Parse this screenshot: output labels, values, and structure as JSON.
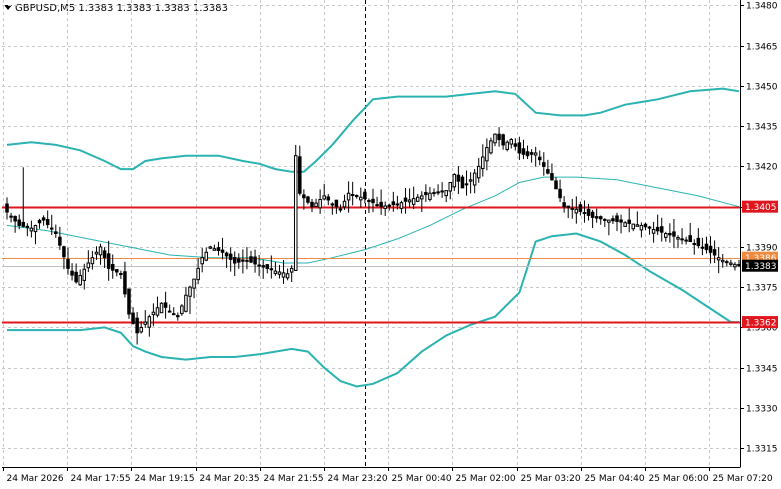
{
  "chart_data": {
    "type": "candlestick",
    "title": "GBPUSD,M5",
    "ohlc_header": [
      "1.3383",
      "1.3383",
      "1.3383",
      "1.3383"
    ],
    "ylim": [
      1.3308,
      1.3482
    ],
    "y_ticks": [
      "1.3480",
      "1.3465",
      "1.3450",
      "1.3435",
      "1.3420",
      "1.3405",
      "1.3390",
      "1.3375",
      "1.3360",
      "1.3345",
      "1.3330",
      "1.3315"
    ],
    "x_ticks": [
      "24 Mar 2026",
      "24 Mar 17:55",
      "24 Mar 19:15",
      "24 Mar 20:35",
      "24 Mar 21:55",
      "24 Mar 23:20",
      "25 Mar 00:40",
      "25 Mar 02:00",
      "25 Mar 03:20",
      "25 Mar 04:40",
      "25 Mar 06:00",
      "25 Mar 07:20"
    ],
    "grid": true,
    "levels": [
      {
        "label": "1.3405",
        "value": 1.3405,
        "color": "#e0161f",
        "kind": "resistance"
      },
      {
        "label": "1.3362",
        "value": 1.3362,
        "color": "#e0161f",
        "kind": "support"
      }
    ],
    "price_line": {
      "label": "1.3386",
      "value": 1.3386,
      "color": "#f08a3e"
    },
    "current_price": {
      "label": "1.3383",
      "value": 1.3383
    },
    "vertical_separator_index": 88,
    "bollinger": {
      "color": "#2ab3b0",
      "upper": [
        [
          0,
          1.3428
        ],
        [
          6,
          1.3429
        ],
        [
          12,
          1.3428
        ],
        [
          18,
          1.3426
        ],
        [
          24,
          1.3422
        ],
        [
          28,
          1.3419
        ],
        [
          31,
          1.3419
        ],
        [
          34,
          1.3422
        ],
        [
          38,
          1.3423
        ],
        [
          44,
          1.3424
        ],
        [
          52,
          1.3424
        ],
        [
          58,
          1.3422
        ],
        [
          62,
          1.3421
        ],
        [
          66,
          1.3419
        ],
        [
          70,
          1.3418
        ],
        [
          73,
          1.3418
        ],
        [
          76,
          1.3422
        ],
        [
          80,
          1.3428
        ],
        [
          85,
          1.3437
        ],
        [
          90,
          1.3445
        ],
        [
          96,
          1.3446
        ],
        [
          102,
          1.3446
        ],
        [
          108,
          1.3446
        ],
        [
          114,
          1.3447
        ],
        [
          120,
          1.3448
        ],
        [
          125,
          1.3447
        ],
        [
          130,
          1.344
        ],
        [
          136,
          1.3439
        ],
        [
          142,
          1.3439
        ],
        [
          146,
          1.344
        ],
        [
          152,
          1.3443
        ],
        [
          160,
          1.3445
        ],
        [
          168,
          1.3448
        ],
        [
          176,
          1.3449
        ],
        [
          180,
          1.3448
        ]
      ],
      "middle": [
        [
          0,
          1.3398
        ],
        [
          10,
          1.3396
        ],
        [
          20,
          1.3393
        ],
        [
          30,
          1.339
        ],
        [
          40,
          1.3387
        ],
        [
          50,
          1.3386
        ],
        [
          60,
          1.3386
        ],
        [
          68,
          1.3384
        ],
        [
          74,
          1.3384
        ],
        [
          80,
          1.3386
        ],
        [
          88,
          1.3389
        ],
        [
          96,
          1.3393
        ],
        [
          104,
          1.3398
        ],
        [
          112,
          1.3404
        ],
        [
          120,
          1.3409
        ],
        [
          126,
          1.3414
        ],
        [
          132,
          1.3416
        ],
        [
          140,
          1.3416
        ],
        [
          150,
          1.3415
        ],
        [
          160,
          1.3412
        ],
        [
          170,
          1.3409
        ],
        [
          180,
          1.3405
        ]
      ],
      "lower": [
        [
          0,
          1.3359
        ],
        [
          6,
          1.3359
        ],
        [
          12,
          1.3359
        ],
        [
          18,
          1.3359
        ],
        [
          24,
          1.336
        ],
        [
          28,
          1.3358
        ],
        [
          31,
          1.3353
        ],
        [
          34,
          1.3351
        ],
        [
          38,
          1.3349
        ],
        [
          44,
          1.3348
        ],
        [
          50,
          1.3349
        ],
        [
          56,
          1.3349
        ],
        [
          62,
          1.335
        ],
        [
          66,
          1.3351
        ],
        [
          70,
          1.3352
        ],
        [
          74,
          1.3351
        ],
        [
          78,
          1.3345
        ],
        [
          82,
          1.334
        ],
        [
          86,
          1.3338
        ],
        [
          90,
          1.3339
        ],
        [
          96,
          1.3343
        ],
        [
          102,
          1.3351
        ],
        [
          108,
          1.3357
        ],
        [
          114,
          1.3361
        ],
        [
          120,
          1.3364
        ],
        [
          126,
          1.3373
        ],
        [
          130,
          1.3392
        ],
        [
          134,
          1.3394
        ],
        [
          140,
          1.3395
        ],
        [
          146,
          1.3392
        ],
        [
          152,
          1.3387
        ],
        [
          158,
          1.3381
        ],
        [
          166,
          1.3374
        ],
        [
          172,
          1.3368
        ],
        [
          178,
          1.3362
        ],
        [
          180,
          1.3362
        ]
      ]
    },
    "candle_anchors": [
      [
        0,
        1.3403
      ],
      [
        3,
        1.3398
      ],
      [
        6,
        1.3397
      ],
      [
        9,
        1.34
      ],
      [
        12,
        1.3395
      ],
      [
        15,
        1.3382
      ],
      [
        17,
        1.3377
      ],
      [
        20,
        1.3384
      ],
      [
        23,
        1.339
      ],
      [
        25,
        1.3382
      ],
      [
        28,
        1.338
      ],
      [
        30,
        1.3365
      ],
      [
        32,
        1.3358
      ],
      [
        35,
        1.3364
      ],
      [
        38,
        1.3369
      ],
      [
        40,
        1.3366
      ],
      [
        42,
        1.3364
      ],
      [
        44,
        1.3372
      ],
      [
        46,
        1.3378
      ],
      [
        48,
        1.3386
      ],
      [
        50,
        1.339
      ],
      [
        53,
        1.3388
      ],
      [
        56,
        1.3384
      ],
      [
        59,
        1.3385
      ],
      [
        62,
        1.3383
      ],
      [
        66,
        1.3381
      ],
      [
        69,
        1.338
      ],
      [
        70,
        1.3382
      ],
      [
        71,
        1.3424
      ],
      [
        72,
        1.341
      ],
      [
        75,
        1.3405
      ],
      [
        78,
        1.3409
      ],
      [
        80,
        1.3406
      ],
      [
        82,
        1.3404
      ],
      [
        84,
        1.341
      ],
      [
        88,
        1.3408
      ],
      [
        92,
        1.3405
      ],
      [
        96,
        1.3406
      ],
      [
        100,
        1.3408
      ],
      [
        104,
        1.341
      ],
      [
        108,
        1.3411
      ],
      [
        110,
        1.3417
      ],
      [
        112,
        1.3412
      ],
      [
        114,
        1.3415
      ],
      [
        116,
        1.342
      ],
      [
        118,
        1.3427
      ],
      [
        120,
        1.3432
      ],
      [
        122,
        1.3428
      ],
      [
        124,
        1.343
      ],
      [
        126,
        1.3425
      ],
      [
        128,
        1.3424
      ],
      [
        130,
        1.3425
      ],
      [
        132,
        1.342
      ],
      [
        134,
        1.3415
      ],
      [
        137,
        1.3405
      ],
      [
        140,
        1.3404
      ],
      [
        144,
        1.3401
      ],
      [
        148,
        1.34
      ],
      [
        152,
        1.3399
      ],
      [
        156,
        1.3398
      ],
      [
        160,
        1.3396
      ],
      [
        164,
        1.3394
      ],
      [
        168,
        1.3392
      ],
      [
        172,
        1.3389
      ],
      [
        176,
        1.3385
      ],
      [
        178,
        1.3384
      ],
      [
        180,
        1.3383
      ]
    ]
  }
}
